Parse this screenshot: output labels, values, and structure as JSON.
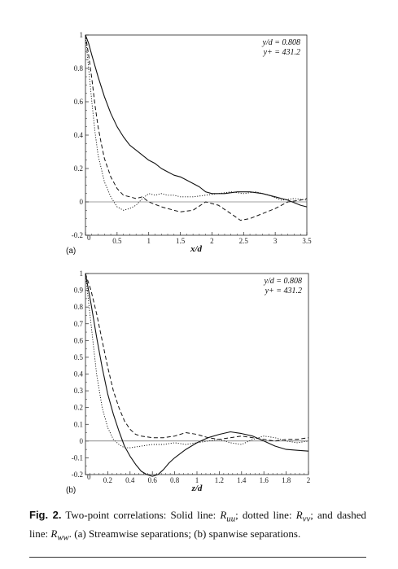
{
  "caption": {
    "label": "Fig. 2.",
    "text_1": " Two-point correlations: Solid line: ",
    "sym_uu": "R",
    "sub_uu": "uu",
    "text_2": "; dotted line: ",
    "sym_vv": "R",
    "sub_vv": "vv",
    "text_3": "; and dashed line: ",
    "sym_ww": "R",
    "sub_ww": "ww",
    "text_4": ". (a) Streamwise separations; (b) spanwise separations."
  },
  "chart_data": [
    {
      "type": "line",
      "panel_label": "(a)",
      "xlabel": "x/d",
      "ylabel": "",
      "xlim": [
        0,
        3.5
      ],
      "ylim": [
        -0.2,
        1
      ],
      "x_ticks": [
        0,
        0.5,
        1,
        1.5,
        2,
        2.5,
        3,
        3.5
      ],
      "x_tick_labels": [
        "0",
        "0.5",
        "1",
        "1.5",
        "2",
        "2.5",
        "3",
        "3.5"
      ],
      "y_ticks": [
        -0.2,
        0,
        0.2,
        0.4,
        0.6,
        0.8,
        1
      ],
      "y_tick_labels": [
        "-0.2",
        "0",
        "0.2",
        "0.4",
        "0.6",
        "0.8",
        "1"
      ],
      "annotations": [
        "y/d = 0.808",
        "y+ = 431.2"
      ],
      "zero_line": true,
      "series": [
        {
          "style": "solid",
          "x": [
            0,
            0.05,
            0.1,
            0.2,
            0.3,
            0.4,
            0.5,
            0.6,
            0.7,
            0.8,
            0.9,
            1.0,
            1.1,
            1.2,
            1.3,
            1.4,
            1.5,
            1.6,
            1.7,
            1.8,
            1.9,
            2.0,
            2.2,
            2.4,
            2.6,
            2.8,
            3.0,
            3.2,
            3.4,
            3.5
          ],
          "y": [
            1,
            0.95,
            0.88,
            0.75,
            0.63,
            0.53,
            0.45,
            0.39,
            0.34,
            0.31,
            0.28,
            0.25,
            0.23,
            0.2,
            0.18,
            0.16,
            0.15,
            0.13,
            0.11,
            0.09,
            0.06,
            0.05,
            0.05,
            0.06,
            0.06,
            0.05,
            0.03,
            0.01,
            -0.02,
            -0.03
          ]
        },
        {
          "style": "dotted",
          "x": [
            0,
            0.05,
            0.1,
            0.15,
            0.2,
            0.3,
            0.4,
            0.5,
            0.6,
            0.7,
            0.8,
            0.9,
            1.0,
            1.1,
            1.2,
            1.3,
            1.4,
            1.5,
            1.7,
            1.9,
            2.1,
            2.3,
            2.5,
            2.7,
            2.9,
            3.1,
            3.3,
            3.5
          ],
          "y": [
            1,
            0.8,
            0.6,
            0.42,
            0.28,
            0.12,
            0.03,
            -0.03,
            -0.05,
            -0.04,
            -0.02,
            0.02,
            0.05,
            0.04,
            0.05,
            0.04,
            0.04,
            0.03,
            0.03,
            0.04,
            0.05,
            0.06,
            0.05,
            0.06,
            0.04,
            0.01,
            0.02,
            0.01
          ]
        },
        {
          "style": "dashed",
          "x": [
            0,
            0.05,
            0.1,
            0.15,
            0.2,
            0.25,
            0.3,
            0.4,
            0.5,
            0.6,
            0.7,
            0.8,
            0.9,
            1.0,
            1.2,
            1.4,
            1.5,
            1.7,
            1.9,
            2.1,
            2.3,
            2.45,
            2.6,
            2.8,
            3.0,
            3.2,
            3.4,
            3.5
          ],
          "y": [
            1,
            0.88,
            0.74,
            0.58,
            0.45,
            0.35,
            0.26,
            0.15,
            0.08,
            0.04,
            0.03,
            0.02,
            0.03,
            0.0,
            -0.03,
            -0.05,
            -0.06,
            -0.05,
            0.0,
            -0.02,
            -0.07,
            -0.11,
            -0.1,
            -0.07,
            -0.04,
            0.0,
            0.01,
            0.02
          ]
        }
      ]
    },
    {
      "type": "line",
      "panel_label": "(b)",
      "xlabel": "z/d",
      "ylabel": "",
      "xlim": [
        0,
        2
      ],
      "ylim": [
        -0.2,
        1
      ],
      "x_ticks": [
        0,
        0.2,
        0.4,
        0.6,
        0.8,
        1,
        1.2,
        1.4,
        1.6,
        1.8,
        2
      ],
      "x_tick_labels": [
        "0",
        "0.2",
        "0.4",
        "0.6",
        "0.8",
        "1",
        "1.2",
        "1.4",
        "1.6",
        "1.8",
        "2"
      ],
      "y_ticks": [
        -0.2,
        -0.1,
        0,
        0.1,
        0.2,
        0.3,
        0.4,
        0.5,
        0.6,
        0.7,
        0.8,
        0.9,
        1
      ],
      "y_tick_labels": [
        "-0.2",
        "-0.1",
        "0",
        "0.1",
        "0.2",
        "0.3",
        "0.4",
        "0.5",
        "0.6",
        "0.7",
        "0.8",
        "0.9",
        "1"
      ],
      "annotations": [
        "y/d = 0.808",
        "y+ = 431.2"
      ],
      "zero_line": true,
      "series": [
        {
          "style": "solid",
          "x": [
            0,
            0.05,
            0.1,
            0.15,
            0.2,
            0.25,
            0.3,
            0.35,
            0.4,
            0.45,
            0.5,
            0.55,
            0.6,
            0.65,
            0.7,
            0.75,
            0.8,
            0.9,
            1.0,
            1.1,
            1.2,
            1.3,
            1.4,
            1.5,
            1.6,
            1.7,
            1.8,
            1.9,
            2.0
          ],
          "y": [
            1,
            0.82,
            0.62,
            0.44,
            0.28,
            0.16,
            0.06,
            -0.03,
            -0.09,
            -0.14,
            -0.18,
            -0.2,
            -0.21,
            -0.2,
            -0.17,
            -0.13,
            -0.1,
            -0.05,
            -0.01,
            0.02,
            0.04,
            0.055,
            0.045,
            0.03,
            0.0,
            -0.03,
            -0.05,
            -0.055,
            -0.06
          ]
        },
        {
          "style": "dotted",
          "x": [
            0,
            0.05,
            0.1,
            0.15,
            0.2,
            0.25,
            0.3,
            0.35,
            0.4,
            0.5,
            0.6,
            0.7,
            0.8,
            0.9,
            1.0,
            1.1,
            1.2,
            1.3,
            1.4,
            1.5,
            1.6,
            1.7,
            1.8,
            1.9,
            2.0
          ],
          "y": [
            1,
            0.7,
            0.4,
            0.2,
            0.08,
            0.01,
            -0.02,
            -0.04,
            -0.04,
            -0.03,
            -0.02,
            -0.02,
            -0.01,
            -0.02,
            -0.01,
            0.0,
            0.01,
            -0.01,
            -0.02,
            0.01,
            0.03,
            0.02,
            0.0,
            -0.01,
            0.0
          ]
        },
        {
          "style": "dashed",
          "x": [
            0,
            0.05,
            0.1,
            0.15,
            0.2,
            0.25,
            0.3,
            0.35,
            0.4,
            0.45,
            0.5,
            0.6,
            0.7,
            0.8,
            0.9,
            1.0,
            1.1,
            1.2,
            1.3,
            1.4,
            1.5,
            1.6,
            1.7,
            1.8,
            1.9,
            2.0
          ],
          "y": [
            1,
            0.9,
            0.76,
            0.6,
            0.44,
            0.3,
            0.2,
            0.12,
            0.07,
            0.04,
            0.03,
            0.02,
            0.02,
            0.03,
            0.05,
            0.04,
            0.02,
            0.01,
            0.02,
            0.03,
            0.02,
            0.01,
            0.0,
            0.01,
            0.01,
            0.02
          ]
        }
      ]
    }
  ]
}
